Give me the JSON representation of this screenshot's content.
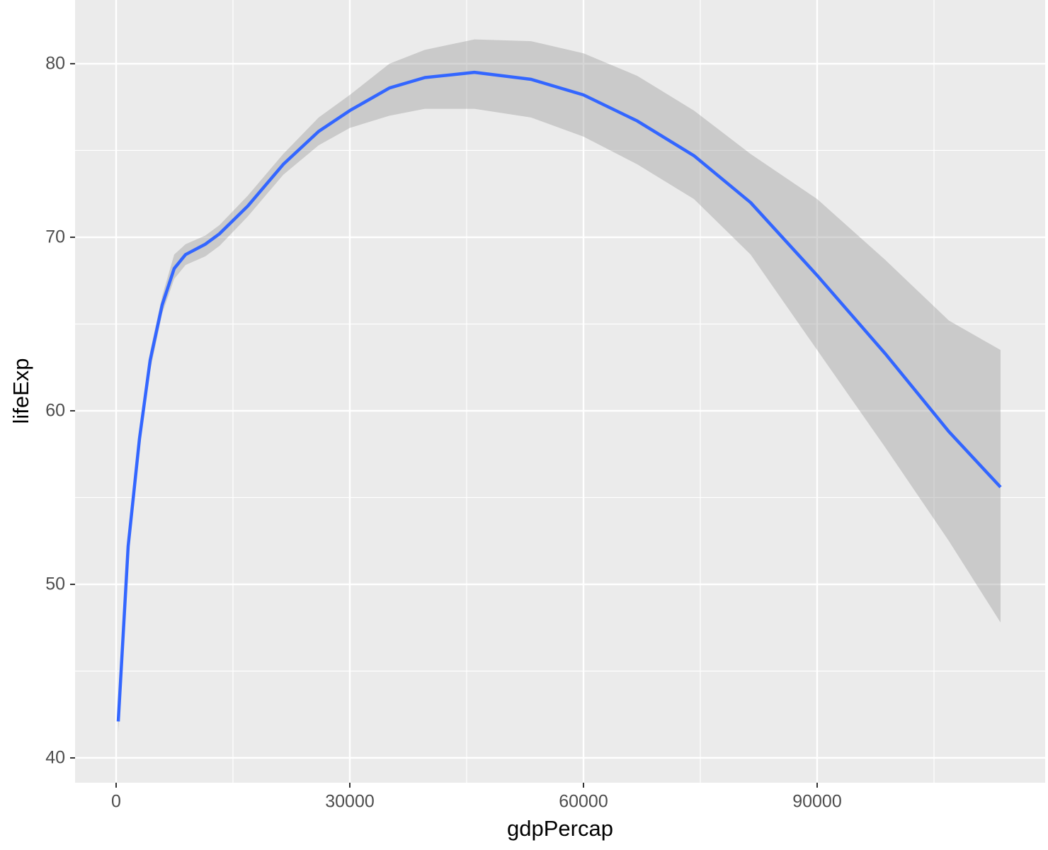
{
  "chart_data": {
    "type": "line",
    "x_label": "gdpPercap",
    "y_label": "lifeExp",
    "x": [
      273,
      1545,
      3000,
      4364,
      5909,
      7455,
      8909,
      11455,
      13270,
      16909,
      21455,
      26000,
      30000,
      35090,
      39636,
      46000,
      53270,
      60000,
      66909,
      74182,
      81455,
      90000,
      98727,
      106909,
      113545
    ],
    "series": [
      {
        "color": "#3366FF",
        "band_color": "#999999",
        "values": [
          42.1,
          52.2,
          58.4,
          62.9,
          66.1,
          68.2,
          69.0,
          69.6,
          70.2,
          71.8,
          74.2,
          76.1,
          77.3,
          78.6,
          79.2,
          79.5,
          79.1,
          78.2,
          76.7,
          74.7,
          72.0,
          67.8,
          63.3,
          58.8,
          55.6
        ],
        "lower": [
          41.5,
          51.5,
          57.8,
          62.3,
          65.6,
          67.6,
          68.4,
          68.9,
          69.5,
          71.2,
          73.6,
          75.3,
          76.3,
          77.0,
          77.4,
          77.4,
          76.9,
          75.8,
          74.2,
          72.2,
          69.0,
          63.5,
          57.9,
          52.5,
          47.8
        ],
        "upper": [
          42.8,
          52.9,
          59.0,
          63.4,
          66.6,
          69.0,
          69.6,
          70.1,
          70.7,
          72.4,
          74.8,
          76.9,
          78.2,
          80.0,
          80.8,
          81.4,
          81.3,
          80.6,
          79.3,
          77.3,
          74.8,
          72.2,
          68.7,
          65.2,
          63.5
        ]
      }
    ],
    "xlim": [
      -5273,
      119273
    ],
    "ylim": [
      38.57,
      83.67
    ],
    "xticks": [
      0,
      30000,
      60000,
      90000
    ],
    "yticks": [
      40,
      50,
      60,
      70,
      80
    ],
    "x_minor_grid": [
      15000,
      45000,
      75000,
      105000
    ],
    "y_minor_grid": [
      45,
      55,
      65,
      75
    ],
    "grid": true
  }
}
